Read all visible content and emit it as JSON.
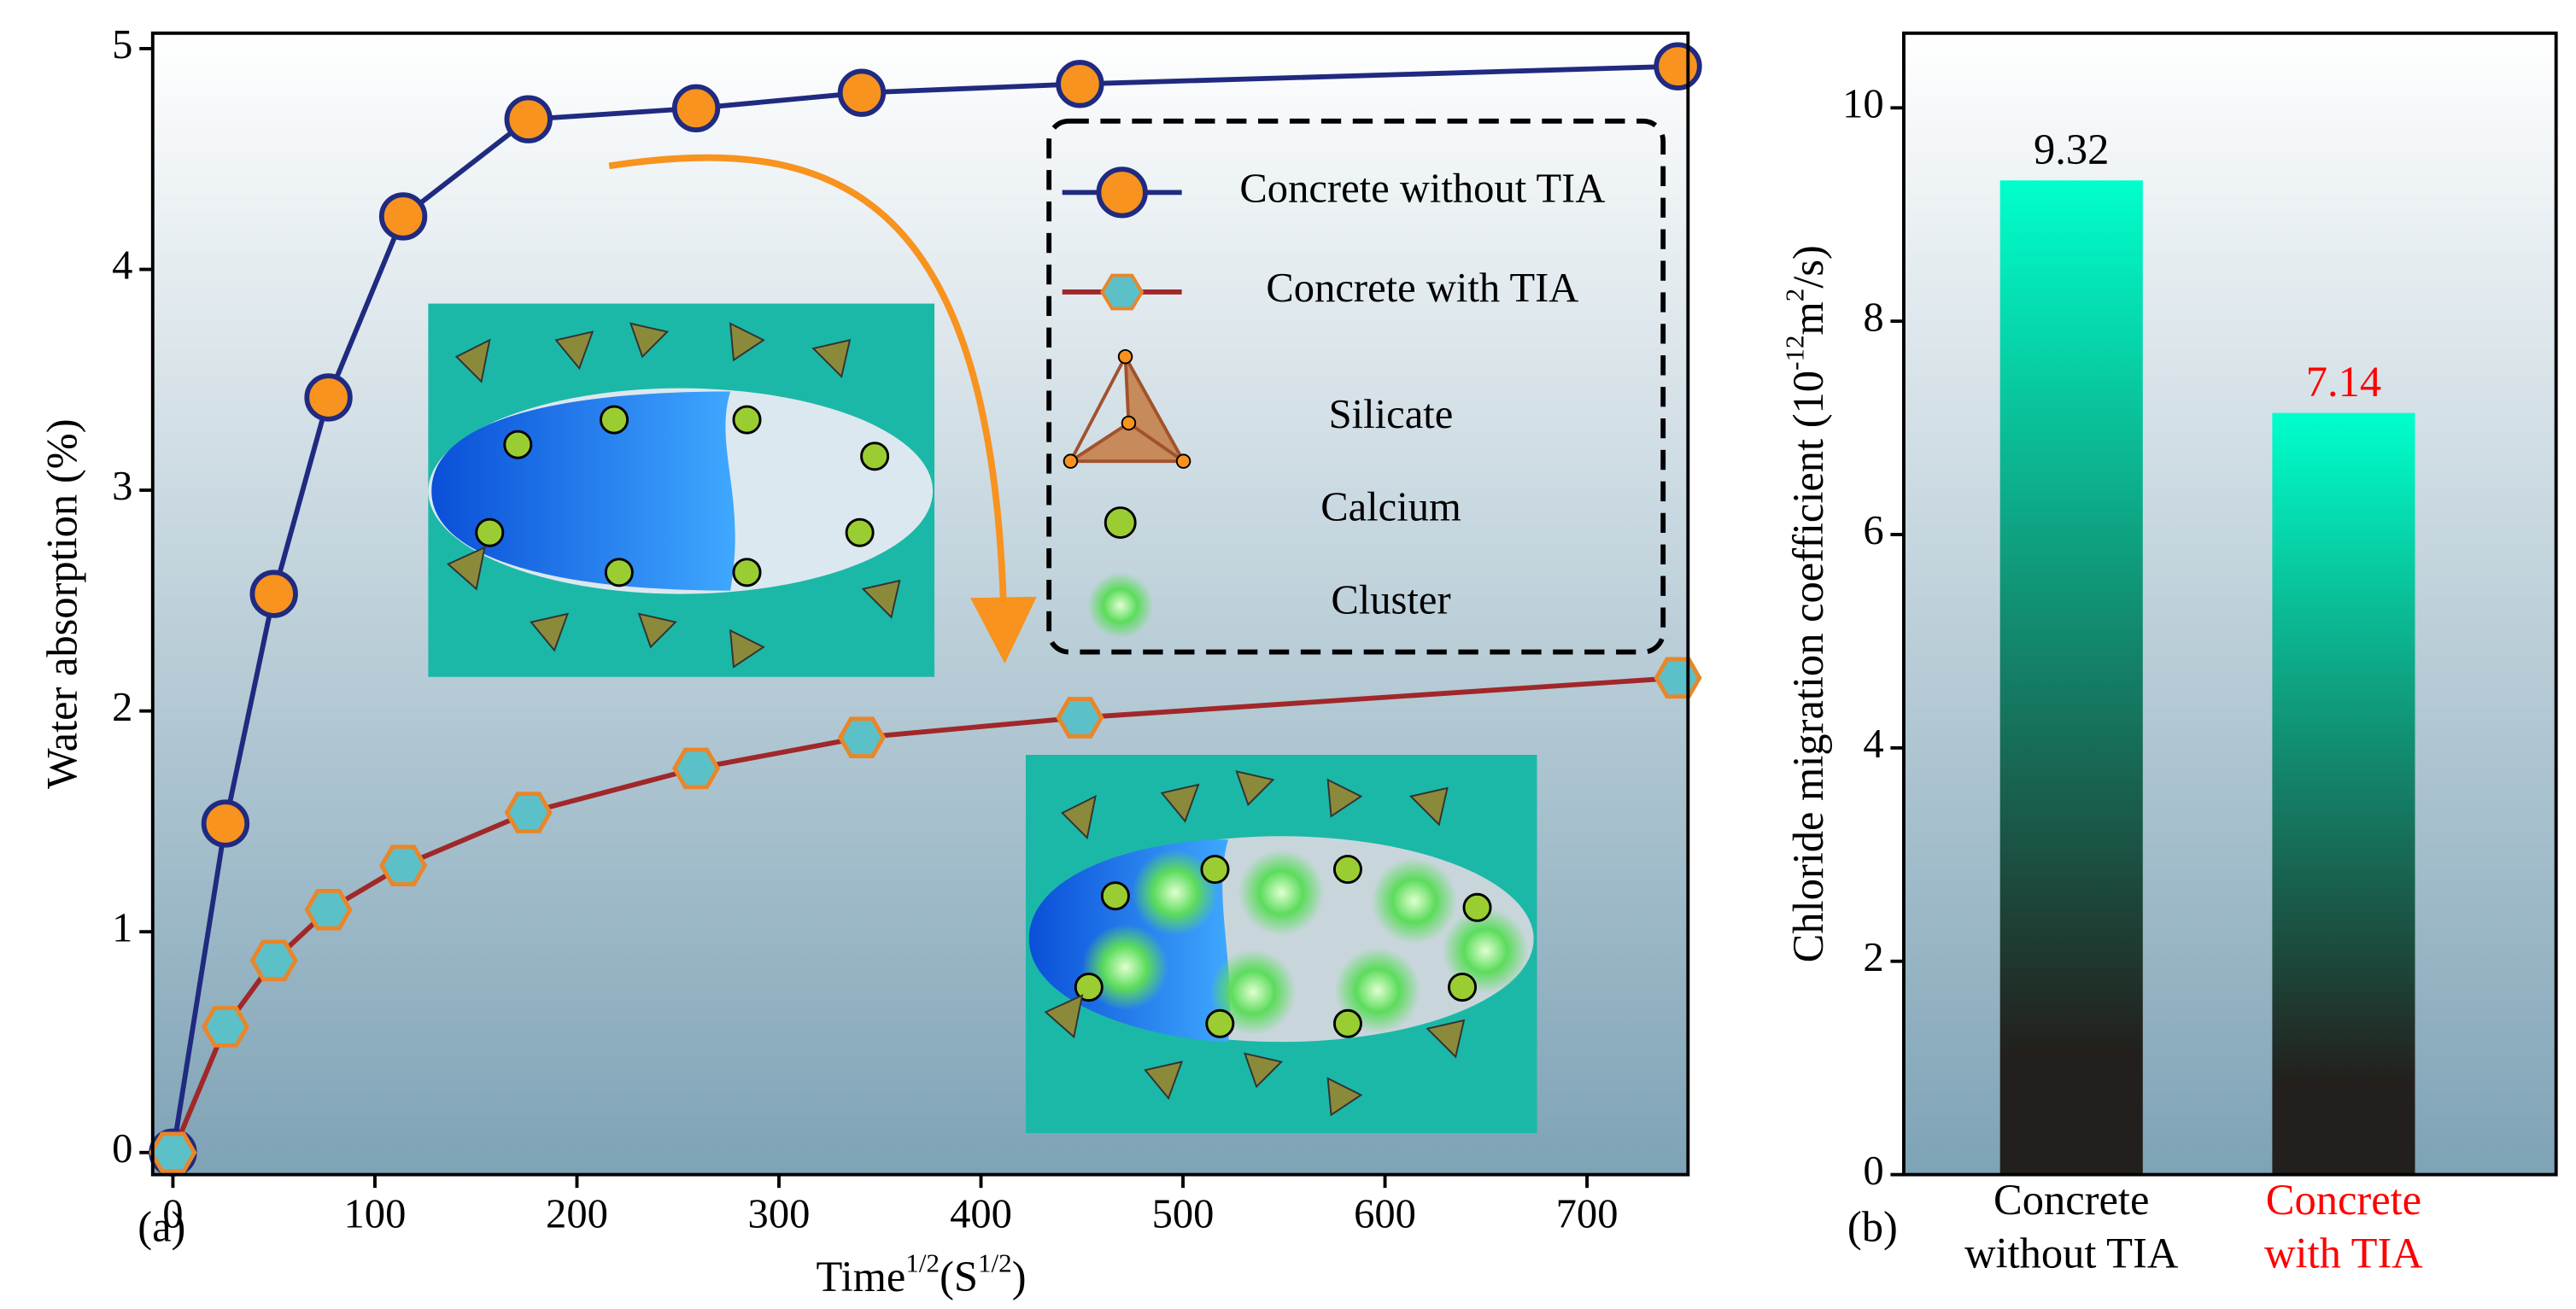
{
  "chart_data": [
    {
      "type": "line",
      "panel_label": "(a)",
      "y_label": "Water absorption (%)",
      "x_label": {
        "text": "Time",
        "sup": "1/2",
        "text2": "(S",
        "sup2": "1/2",
        "text3": ")"
      },
      "x": [
        0,
        26,
        50,
        77,
        114,
        176,
        259,
        341,
        449,
        745
      ],
      "series": [
        {
          "name": "Concrete without TIA",
          "color": "#1f2a80",
          "marker": "circle",
          "marker_color": "#f7931e",
          "values": [
            0,
            1.49,
            2.53,
            3.42,
            4.24,
            4.68,
            4.73,
            4.8,
            4.84,
            4.92
          ]
        },
        {
          "name": "Concrete with TIA",
          "color": "#a0282a",
          "marker": "hexagon",
          "marker_color": "#5cc0c8",
          "values": [
            0,
            0.57,
            0.87,
            1.1,
            1.3,
            1.54,
            1.74,
            1.88,
            1.97,
            2.15
          ]
        }
      ],
      "legend_extra": [
        "Silicate",
        "Calcium",
        "Cluster"
      ],
      "xlim": [
        -10,
        750
      ],
      "ylim": [
        -0.1,
        5.07
      ],
      "xticks": [
        0,
        100,
        200,
        300,
        400,
        500,
        600,
        700
      ],
      "yticks": [
        0,
        1,
        2,
        3,
        4,
        5
      ]
    },
    {
      "type": "bar",
      "panel_label": "(b)",
      "y_label": {
        "text": "Chloride migration coefficient (10",
        "sup": "-12",
        "text2": "m",
        "sup2": "2",
        "text3": "/s)"
      },
      "categories": [
        [
          "Concrete",
          "without TIA"
        ],
        [
          "Concrete",
          "with TIA"
        ]
      ],
      "category_colors": [
        "#000000",
        "#ff0000"
      ],
      "values": [
        9.32,
        7.14
      ],
      "value_labels": [
        "9.32",
        "7.14"
      ],
      "color": "#00ffcc",
      "ylim": [
        0,
        10.7
      ],
      "yticks": [
        0,
        2,
        4,
        6,
        8,
        10
      ]
    }
  ]
}
